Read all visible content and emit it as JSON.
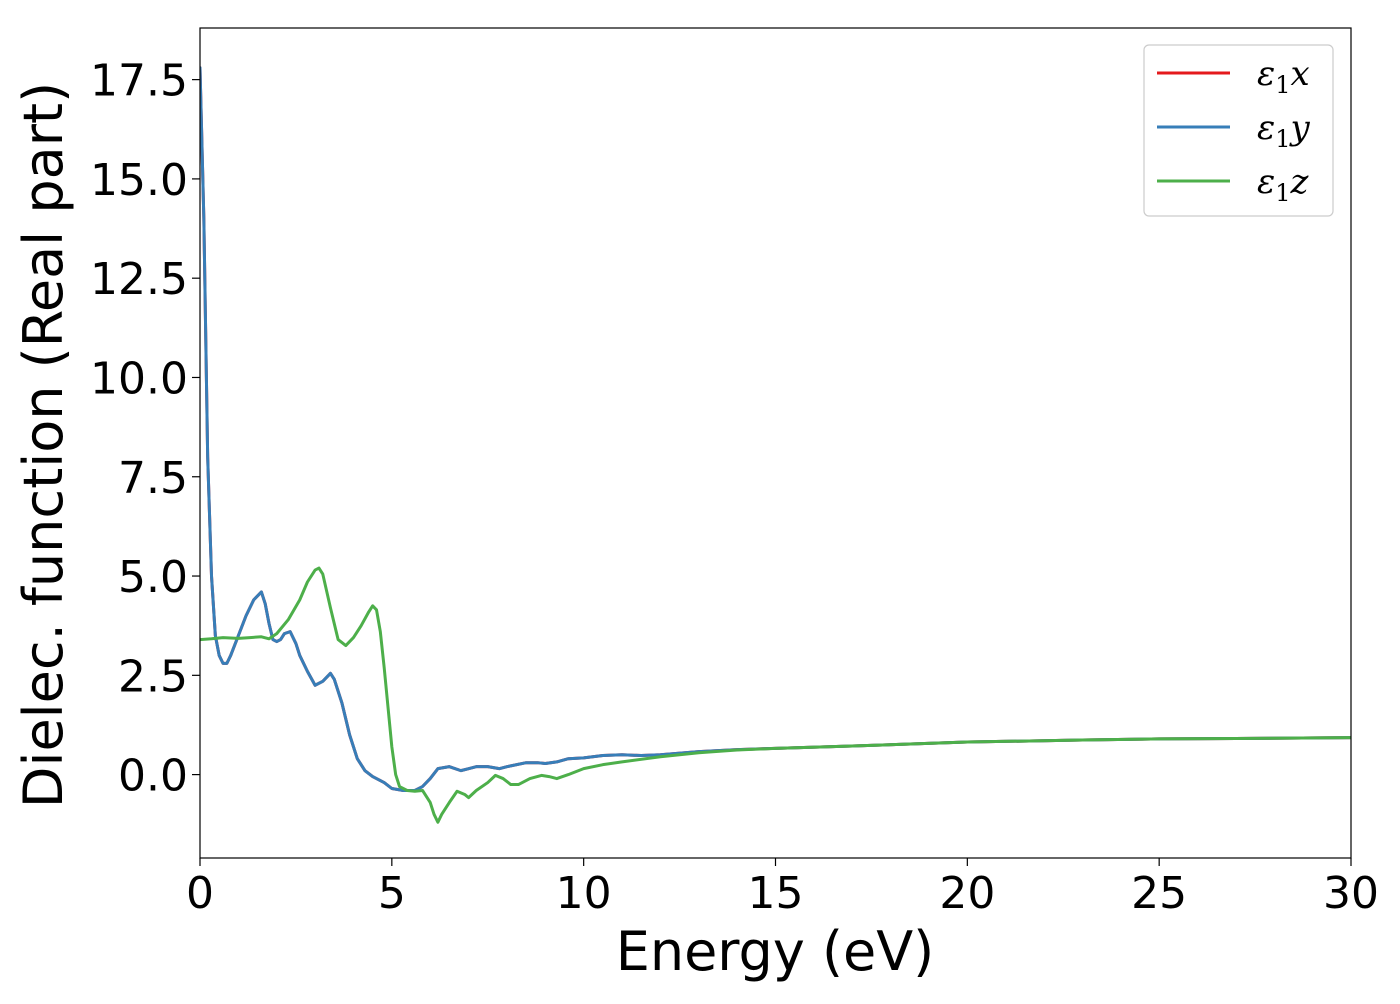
{
  "chart_data": {
    "type": "line",
    "title": "",
    "xlabel": "Energy (eV)",
    "ylabel": "Dielec. function (Real part)",
    "xlim": [
      0,
      30
    ],
    "ylim": [
      -2.1,
      18.8
    ],
    "xticks": [
      0,
      5,
      10,
      15,
      20,
      25,
      30
    ],
    "yticks": [
      0.0,
      2.5,
      5.0,
      7.5,
      10.0,
      12.5,
      15.0,
      17.5
    ],
    "xtick_labels": [
      "0",
      "5",
      "10",
      "15",
      "20",
      "25",
      "30"
    ],
    "ytick_labels": [
      "0.0",
      "2.5",
      "5.0",
      "7.5",
      "10.0",
      "12.5",
      "15.0",
      "17.5"
    ],
    "grid": false,
    "legend_position": "top-right",
    "series": [
      {
        "name_base": "ε",
        "name_sub": "1",
        "name_var": "x",
        "color": "#e41a1c",
        "x": [
          0,
          0.1,
          0.2,
          0.3,
          0.4,
          0.5,
          0.6,
          0.7,
          0.8,
          1.0,
          1.2,
          1.4,
          1.6,
          1.7,
          1.8,
          1.9,
          2.0,
          2.1,
          2.2,
          2.35,
          2.5,
          2.6,
          2.8,
          3.0,
          3.2,
          3.4,
          3.5,
          3.7,
          3.9,
          4.1,
          4.3,
          4.5,
          4.8,
          5.0,
          5.3,
          5.6,
          5.8,
          6.0,
          6.2,
          6.5,
          6.8,
          7.0,
          7.2,
          7.5,
          7.8,
          8.0,
          8.5,
          8.8,
          9.0,
          9.3,
          9.6,
          10.0,
          10.5,
          11.0,
          11.5,
          12.0,
          13.0,
          14.0,
          15.0,
          17.0,
          20.0,
          23.0,
          25.0,
          27.0,
          30.0
        ],
        "y": [
          17.8,
          14.0,
          8.0,
          5.0,
          3.5,
          3.0,
          2.8,
          2.8,
          3.0,
          3.5,
          4.0,
          4.4,
          4.6,
          4.3,
          3.8,
          3.4,
          3.35,
          3.4,
          3.55,
          3.6,
          3.3,
          3.0,
          2.6,
          2.25,
          2.35,
          2.55,
          2.4,
          1.8,
          1.0,
          0.4,
          0.1,
          -0.05,
          -0.2,
          -0.35,
          -0.4,
          -0.4,
          -0.3,
          -0.1,
          0.15,
          0.2,
          0.1,
          0.15,
          0.2,
          0.2,
          0.15,
          0.2,
          0.3,
          0.3,
          0.28,
          0.32,
          0.4,
          0.42,
          0.48,
          0.5,
          0.48,
          0.5,
          0.58,
          0.63,
          0.66,
          0.72,
          0.82,
          0.87,
          0.9,
          0.91,
          0.93
        ]
      },
      {
        "name_base": "ε",
        "name_sub": "1",
        "name_var": "y",
        "color": "#377eb8",
        "x": [
          0,
          0.1,
          0.2,
          0.3,
          0.4,
          0.5,
          0.6,
          0.7,
          0.8,
          1.0,
          1.2,
          1.4,
          1.6,
          1.7,
          1.8,
          1.9,
          2.0,
          2.1,
          2.2,
          2.35,
          2.5,
          2.6,
          2.8,
          3.0,
          3.2,
          3.4,
          3.5,
          3.7,
          3.9,
          4.1,
          4.3,
          4.5,
          4.8,
          5.0,
          5.3,
          5.6,
          5.8,
          6.0,
          6.2,
          6.5,
          6.8,
          7.0,
          7.2,
          7.5,
          7.8,
          8.0,
          8.5,
          8.8,
          9.0,
          9.3,
          9.6,
          10.0,
          10.5,
          11.0,
          11.5,
          12.0,
          13.0,
          14.0,
          15.0,
          17.0,
          20.0,
          23.0,
          25.0,
          27.0,
          30.0
        ],
        "y": [
          17.8,
          14.0,
          8.0,
          5.0,
          3.5,
          3.0,
          2.8,
          2.8,
          3.0,
          3.5,
          4.0,
          4.4,
          4.6,
          4.3,
          3.8,
          3.4,
          3.35,
          3.4,
          3.55,
          3.6,
          3.3,
          3.0,
          2.6,
          2.25,
          2.35,
          2.55,
          2.4,
          1.8,
          1.0,
          0.4,
          0.1,
          -0.05,
          -0.2,
          -0.35,
          -0.4,
          -0.4,
          -0.3,
          -0.1,
          0.15,
          0.2,
          0.1,
          0.15,
          0.2,
          0.2,
          0.15,
          0.2,
          0.3,
          0.3,
          0.28,
          0.32,
          0.4,
          0.42,
          0.48,
          0.5,
          0.48,
          0.5,
          0.58,
          0.63,
          0.66,
          0.72,
          0.82,
          0.87,
          0.9,
          0.91,
          0.93
        ]
      },
      {
        "name_base": "ε",
        "name_sub": "1",
        "name_var": "z",
        "color": "#4daf4a",
        "x": [
          0,
          0.3,
          0.6,
          1.0,
          1.3,
          1.6,
          1.8,
          2.0,
          2.3,
          2.6,
          2.8,
          3.0,
          3.1,
          3.2,
          3.4,
          3.6,
          3.8,
          4.0,
          4.2,
          4.4,
          4.5,
          4.6,
          4.7,
          4.8,
          4.9,
          5.0,
          5.1,
          5.2,
          5.4,
          5.6,
          5.8,
          6.0,
          6.1,
          6.2,
          6.3,
          6.5,
          6.7,
          6.9,
          7.0,
          7.2,
          7.5,
          7.7,
          7.9,
          8.1,
          8.3,
          8.6,
          8.9,
          9.1,
          9.3,
          9.6,
          10.0,
          10.5,
          11.0,
          12.0,
          13.0,
          14.0,
          15.0,
          17.0,
          20.0,
          23.0,
          25.0,
          27.0,
          30.0
        ],
        "y": [
          3.4,
          3.42,
          3.45,
          3.43,
          3.45,
          3.47,
          3.42,
          3.55,
          3.9,
          4.4,
          4.85,
          5.15,
          5.2,
          5.05,
          4.2,
          3.4,
          3.25,
          3.45,
          3.75,
          4.1,
          4.25,
          4.15,
          3.6,
          2.7,
          1.7,
          0.7,
          0.0,
          -0.3,
          -0.4,
          -0.42,
          -0.4,
          -0.7,
          -1.0,
          -1.2,
          -1.0,
          -0.7,
          -0.42,
          -0.5,
          -0.58,
          -0.4,
          -0.2,
          -0.02,
          -0.1,
          -0.25,
          -0.25,
          -0.1,
          -0.02,
          -0.05,
          -0.1,
          0.0,
          0.15,
          0.25,
          0.32,
          0.45,
          0.55,
          0.62,
          0.66,
          0.72,
          0.82,
          0.87,
          0.9,
          0.91,
          0.93
        ]
      }
    ]
  }
}
